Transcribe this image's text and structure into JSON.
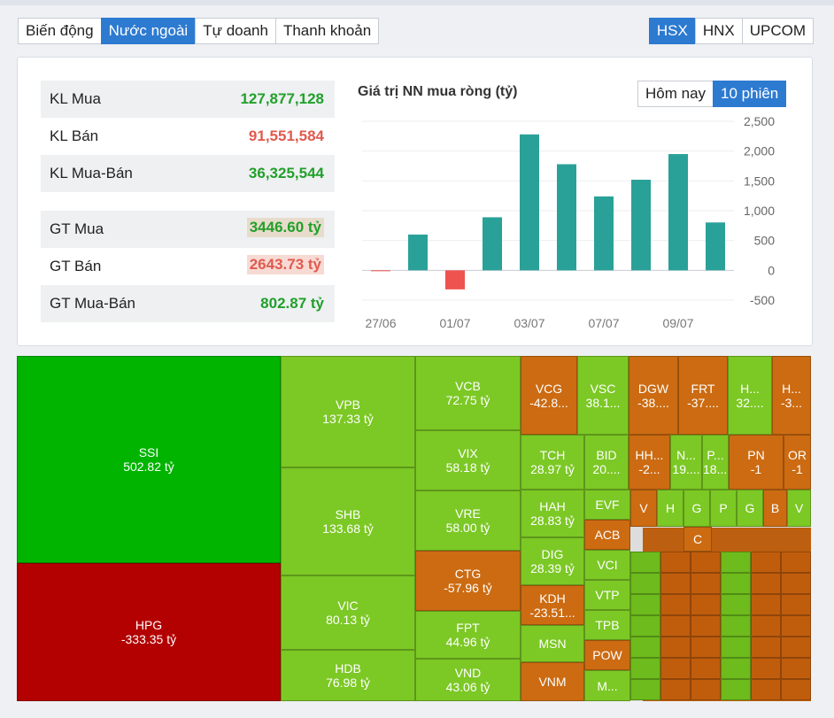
{
  "top_tabs": [
    "Biến động",
    "Nước ngoài",
    "Tự doanh",
    "Thanh khoản"
  ],
  "top_tab_active": 1,
  "exchange_tabs": [
    "HSX",
    "HNX",
    "UPCOM"
  ],
  "exchange_active": 0,
  "stats": [
    {
      "label": "KL Mua",
      "value": "127,877,128",
      "color": "green"
    },
    {
      "label": "KL Bán",
      "value": "91,551,584",
      "color": "red"
    },
    {
      "label": "KL Mua-Bán",
      "value": "36,325,544",
      "color": "green"
    },
    {
      "label": "GT Mua",
      "value": "3446.60 tỷ",
      "color": "green"
    },
    {
      "label": "GT Bán",
      "value": "2643.73 tỷ",
      "color": "red"
    },
    {
      "label": "GT Mua-Bán",
      "value": "802.87 tỷ",
      "color": "green"
    }
  ],
  "chart_title": "Giá trị NN mua ròng (tỷ)",
  "range_buttons": [
    "Hôm nay",
    "10 phiên"
  ],
  "range_active": 1,
  "colors": {
    "accent": "#2d7ad1",
    "bar_positive": "#2aa198",
    "bar_negative": "#ef5350",
    "buy": "#21a02a",
    "sell": "#e05a4e"
  },
  "chart_data": {
    "type": "bar",
    "x_tick_labels": [
      "27/06",
      "01/07",
      "03/07",
      "07/07",
      "09/07"
    ],
    "values": [
      -10,
      600,
      -320,
      890,
      2280,
      1780,
      1240,
      1520,
      1950,
      802.87
    ],
    "y_ticks": [
      2500,
      2000,
      1500,
      1000,
      500,
      0,
      -500
    ],
    "y_tick_labels": [
      "2,500",
      "2,000",
      "1,500",
      "1,000",
      "500",
      "0",
      "-500"
    ],
    "ylim": [
      -500,
      2500
    ],
    "y_axis_side": "right",
    "grid": true
  },
  "treemap": [
    {
      "code": "SSI",
      "value": "502.82 tỷ",
      "color": "g1"
    },
    {
      "code": "HPG",
      "value": "-333.35 tỷ",
      "color": "r1"
    },
    {
      "code": "VPB",
      "value": "137.33 tỷ",
      "color": "lg"
    },
    {
      "code": "SHB",
      "value": "133.68 tỷ",
      "color": "lg"
    },
    {
      "code": "VIC",
      "value": "80.13 tỷ",
      "color": "lg"
    },
    {
      "code": "HDB",
      "value": "76.98 tỷ",
      "color": "lg"
    },
    {
      "code": "VCB",
      "value": "72.75 tỷ",
      "color": "lg"
    },
    {
      "code": "VIX",
      "value": "58.18 tỷ",
      "color": "lg"
    },
    {
      "code": "VRE",
      "value": "58.00 tỷ",
      "color": "lg"
    },
    {
      "code": "CTG",
      "value": "-57.96 tỷ",
      "color": "or"
    },
    {
      "code": "FPT",
      "value": "44.96 tỷ",
      "color": "lg"
    },
    {
      "code": "VND",
      "value": "43.06 tỷ",
      "color": "lg"
    },
    {
      "code": "VCG",
      "value": "-42.8...",
      "color": "or"
    },
    {
      "code": "VSC",
      "value": "38.1...",
      "color": "lg"
    },
    {
      "code": "DGW",
      "value": "-38....",
      "color": "or"
    },
    {
      "code": "FRT",
      "value": "-37....",
      "color": "or"
    },
    {
      "code": "H...",
      "value": "32....",
      "color": "lg"
    },
    {
      "code": "H...",
      "value": "-3...",
      "color": "or"
    },
    {
      "code": "TCH",
      "value": "28.97 tỷ",
      "color": "lg"
    },
    {
      "code": "BID",
      "value": "20....",
      "color": "lg"
    },
    {
      "code": "HH...",
      "value": "-2...",
      "color": "or"
    },
    {
      "code": "N...",
      "value": "19....",
      "color": "lg"
    },
    {
      "code": "P...",
      "value": "18....",
      "color": "lg"
    },
    {
      "code": "PN",
      "value": "-1",
      "color": "or"
    },
    {
      "code": "OR",
      "value": "-1",
      "color": "or"
    },
    {
      "code": "HAH",
      "value": "28.83 tỷ",
      "color": "lg"
    },
    {
      "code": "DIG",
      "value": "28.39 tỷ",
      "color": "lg"
    },
    {
      "code": "KDH",
      "value": "-23.51...",
      "color": "or"
    },
    {
      "code": "MSN",
      "value": "",
      "color": "lg"
    },
    {
      "code": "VNM",
      "value": "",
      "color": "or"
    },
    {
      "code": "EVF",
      "value": "",
      "color": "lg"
    },
    {
      "code": "ACB",
      "value": "",
      "color": "or"
    },
    {
      "code": "VCI",
      "value": "",
      "color": "lg"
    },
    {
      "code": "VTP",
      "value": "",
      "color": "lg"
    },
    {
      "code": "TPB",
      "value": "",
      "color": "lg"
    },
    {
      "code": "POW",
      "value": "",
      "color": "or"
    },
    {
      "code": "M...",
      "value": "",
      "color": "lg"
    },
    {
      "code": "V",
      "value": "",
      "color": "or"
    },
    {
      "code": "H",
      "value": "",
      "color": "lg"
    },
    {
      "code": "G",
      "value": "",
      "color": "lg"
    },
    {
      "code": "P",
      "value": "",
      "color": "lg"
    },
    {
      "code": "G",
      "value": "",
      "color": "lg"
    },
    {
      "code": "B",
      "value": "",
      "color": "or"
    },
    {
      "code": "V",
      "value": "",
      "color": "lg"
    },
    {
      "code": "C",
      "value": "",
      "color": "or"
    }
  ]
}
